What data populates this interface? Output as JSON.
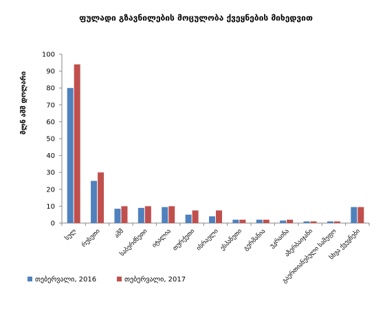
{
  "chart_data": {
    "type": "bar",
    "title": "ფულადი გზავნილების მოცულობა ქვეყნების მიხედვით",
    "xlabel": "",
    "ylabel": "მლნ აშშ დოლარი",
    "ylim": [
      0,
      100
    ],
    "yticks": [
      0,
      10,
      20,
      30,
      40,
      50,
      60,
      70,
      80,
      90,
      100
    ],
    "grid": false,
    "legend_position": "bottom-left",
    "categories": [
      "სულ",
      "რუსეთი",
      "აშშ",
      "საბერძნეთი",
      "იტალია",
      "თურქეთი",
      "ისრაელი",
      "ესპანეთი",
      "გერმანია",
      "უკრაინა",
      "აზერბაიჯანი",
      "გაერთიანებული სამეფო",
      "სხვა ქვეყნები"
    ],
    "series": [
      {
        "name": "თებერვალი, 2016",
        "color": "#4F81BD",
        "values": [
          80,
          25,
          8.5,
          9,
          9.5,
          5,
          4,
          2,
          2,
          1.5,
          1,
          1,
          9.5
        ]
      },
      {
        "name": "თებერვალი, 2017",
        "color": "#C0504D",
        "values": [
          94,
          30,
          10,
          10,
          10,
          7.5,
          7.5,
          2,
          2,
          2,
          1,
          1,
          9.5
        ]
      }
    ]
  }
}
